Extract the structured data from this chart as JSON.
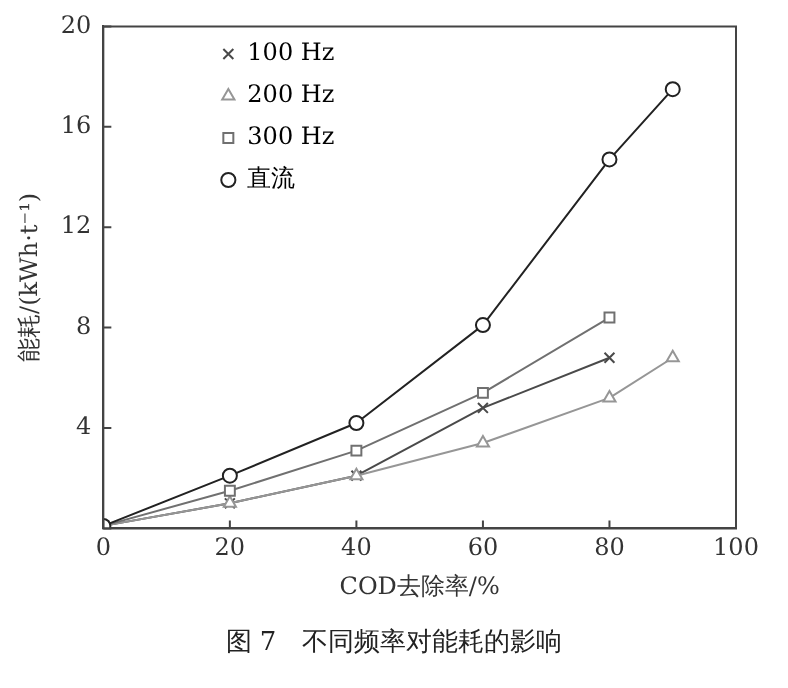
{
  "chart_data": {
    "type": "line",
    "xlabel": "COD去除率/%",
    "ylabel": "能耗/(kWh·t⁻¹)",
    "x": [
      0,
      20,
      40,
      60,
      80,
      90
    ],
    "series": [
      {
        "name": "100 Hz",
        "color": "#4a4a4a",
        "marker": "cross",
        "values": [
          0.1,
          1.0,
          2.1,
          4.8,
          6.8,
          null
        ]
      },
      {
        "name": "200 Hz",
        "color": "#969696",
        "marker": "triangle",
        "values": [
          0.1,
          1.0,
          2.1,
          3.4,
          5.2,
          6.8
        ]
      },
      {
        "name": "300 Hz",
        "color": "#707070",
        "marker": "square",
        "values": [
          0.1,
          1.5,
          3.1,
          5.4,
          8.4,
          null
        ]
      },
      {
        "name": "直流",
        "color": "#222222",
        "marker": "circle",
        "values": [
          0.1,
          2.1,
          4.2,
          8.1,
          14.7,
          17.5
        ]
      }
    ],
    "xlim": [
      0,
      100
    ],
    "xticks": [
      0,
      20,
      40,
      60,
      80,
      100
    ],
    "ylim": [
      0,
      20
    ],
    "yticks": [
      {
        "value": 0,
        "label": null
      },
      4,
      8,
      12,
      16,
      20
    ],
    "grid": false,
    "legend": "top left",
    "line_style": "solid",
    "annotations": [
      "图 7　不同频率对能耗的影响"
    ]
  }
}
